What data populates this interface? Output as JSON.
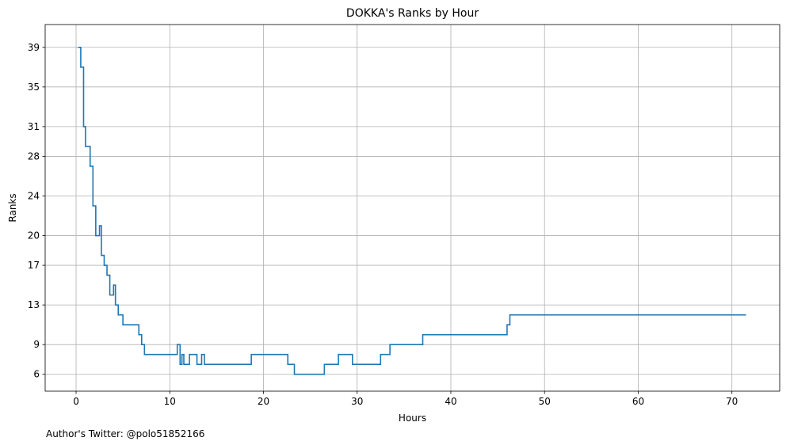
{
  "chart_data": {
    "type": "line",
    "step": "post",
    "title": "DOKKA's Ranks by Hour",
    "xlabel": "Hours",
    "ylabel": "Ranks",
    "x_ticks": [
      0,
      10,
      20,
      30,
      40,
      50,
      60,
      70
    ],
    "y_ticks": [
      6,
      9,
      13,
      17,
      20,
      24,
      28,
      31,
      35,
      39
    ],
    "y_inverted": true,
    "xlim": [
      -3.3,
      75.1
    ],
    "ylim": [
      41.3,
      4.3
    ],
    "grid": true,
    "line_color": "#1f77b4",
    "series": [
      {
        "x": [
          0.2,
          0.5,
          0.8,
          1.0,
          1.5,
          1.8,
          2.1,
          2.5,
          2.7,
          3.0,
          3.3,
          3.6,
          4.0,
          4.2,
          4.5,
          5.0,
          6.7,
          7.0,
          7.3,
          8.0,
          10.8,
          11.1,
          11.3,
          11.5,
          12.1,
          12.9,
          13.4,
          13.7,
          14.0,
          18.7,
          21.0,
          22.6,
          23.3,
          26.5,
          28.0,
          29.5,
          32.5,
          33.5,
          37.0,
          46.0,
          46.3,
          71.5
        ],
        "y": [
          39,
          37,
          31,
          29,
          27,
          23,
          20,
          21,
          18,
          17,
          16,
          14,
          15,
          13,
          12,
          11,
          10,
          9,
          8,
          8,
          9,
          7,
          8,
          7,
          8,
          7,
          8,
          7,
          7,
          8,
          8,
          7,
          6,
          7,
          8,
          7,
          8,
          9,
          10,
          11,
          12,
          12
        ]
      }
    ],
    "footer": "Author's Twitter: @polo51852166"
  }
}
